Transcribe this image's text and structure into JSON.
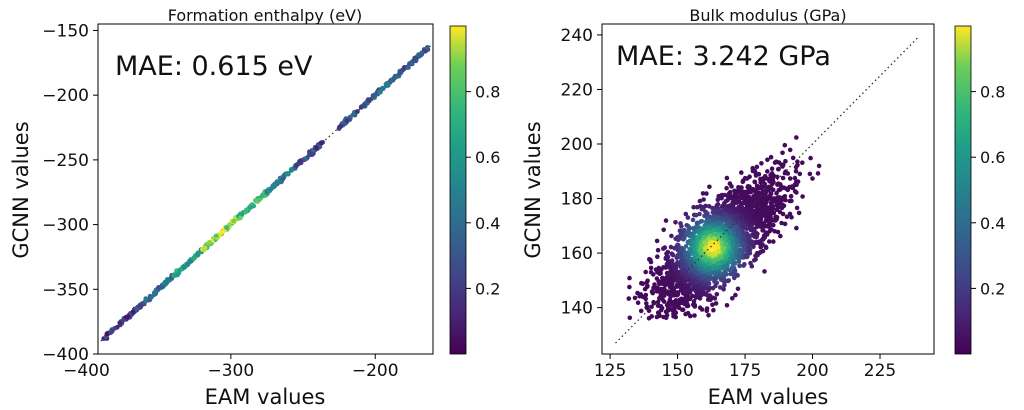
{
  "chart_data": [
    {
      "type": "scatter",
      "title": "Formation enthalpy (eV)",
      "xlabel": "EAM values",
      "ylabel": "GCNN values",
      "annotation": "MAE: 0.615 eV",
      "xlim": [
        -392,
        -160
      ],
      "ylim": [
        -400,
        -145
      ],
      "xticks": [
        -400,
        -300,
        -200
      ],
      "yticks": [
        -400,
        -350,
        -300,
        -250,
        -200,
        -150
      ],
      "xtick_labels": [
        "−400",
        "−300",
        "−200"
      ],
      "ytick_labels": [
        "−400",
        "−350",
        "−300",
        "−250",
        "−200",
        "−150"
      ],
      "diagonal": {
        "from": -390,
        "to": -160,
        "style": "dotted"
      },
      "colorbar": {
        "colormap": "viridis",
        "ticks": [
          0.2,
          0.4,
          0.6,
          0.8
        ],
        "tick_labels": [
          "0.2",
          "0.4",
          "0.6",
          "0.8"
        ],
        "range": [
          0.0,
          1.0
        ]
      },
      "points_description": "dense points lying on y = x from about -388 to -163; density highest (yellow) near -300, gap near -235 to -225",
      "density_segments": [
        {
          "x_from": -388,
          "x_to": -360,
          "density": 0.2
        },
        {
          "x_from": -360,
          "x_to": -340,
          "density": 0.4
        },
        {
          "x_from": -340,
          "x_to": -320,
          "density": 0.65
        },
        {
          "x_from": -320,
          "x_to": -295,
          "density": 0.9
        },
        {
          "x_from": -295,
          "x_to": -275,
          "density": 0.75
        },
        {
          "x_from": -275,
          "x_to": -255,
          "density": 0.45
        },
        {
          "x_from": -255,
          "x_to": -236,
          "density": 0.25
        },
        {
          "x_from": -226,
          "x_to": -200,
          "density": 0.3
        },
        {
          "x_from": -200,
          "x_to": -180,
          "density": 0.35
        },
        {
          "x_from": -180,
          "x_to": -163,
          "density": 0.25
        }
      ]
    },
    {
      "type": "scatter",
      "title": "Bulk modulus (GPa)",
      "xlabel": "EAM values",
      "ylabel": "GCNN values",
      "annotation": "MAE: 3.242 GPa",
      "xlim": [
        122,
        245
      ],
      "ylim": [
        123,
        244
      ],
      "xticks": [
        125,
        150,
        175,
        200,
        225
      ],
      "yticks": [
        140,
        160,
        180,
        200,
        220,
        240
      ],
      "xtick_labels": [
        "125",
        "150",
        "175",
        "200",
        "225"
      ],
      "ytick_labels": [
        "140",
        "160",
        "180",
        "200",
        "220",
        "240"
      ],
      "diagonal": {
        "from": 127,
        "to": 239,
        "style": "dotted"
      },
      "colorbar": {
        "colormap": "viridis",
        "ticks": [
          0.2,
          0.4,
          0.6,
          0.8
        ],
        "tick_labels": [
          "0.2",
          "0.4",
          "0.6",
          "0.8"
        ],
        "range": [
          0.0,
          1.0
        ]
      },
      "cloud": {
        "center_x": 165,
        "center_y": 163,
        "spread_along": 16,
        "spread_across": 6,
        "x_range": [
          128,
          212
        ],
        "y_range": [
          136,
          212
        ],
        "peak_x": 163,
        "peak_y": 162
      }
    }
  ]
}
